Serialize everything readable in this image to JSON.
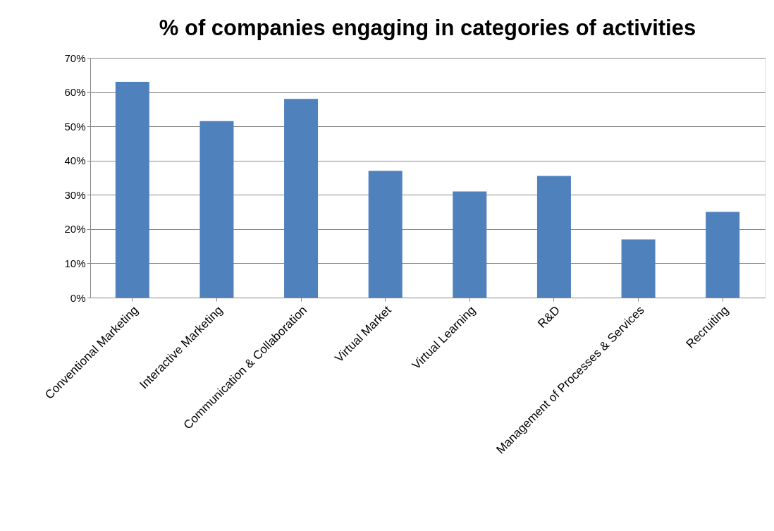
{
  "chart_data": {
    "type": "bar",
    "title": "% of companies engaging in categories of activities",
    "categories": [
      "Conventional Marketing",
      "Interactive Marketing",
      "Communication & Collaboration",
      "Virtual Market",
      "Virtual Learning",
      "R&D",
      "Management of Processes & Services",
      "Recruiting"
    ],
    "values": [
      63,
      51.5,
      58,
      37,
      31,
      35.5,
      17,
      25
    ],
    "color": "#4f81bd",
    "ylim": [
      0,
      70
    ],
    "yticks": [
      {
        "value": 0,
        "label": "0%"
      },
      {
        "value": 10,
        "label": "10%"
      },
      {
        "value": 20,
        "label": "20%"
      },
      {
        "value": 30,
        "label": "30%"
      },
      {
        "value": 40,
        "label": "40%"
      },
      {
        "value": 50,
        "label": "50%"
      },
      {
        "value": 60,
        "label": "60%"
      },
      {
        "value": 70,
        "label": "70%"
      }
    ],
    "grid": "y"
  }
}
